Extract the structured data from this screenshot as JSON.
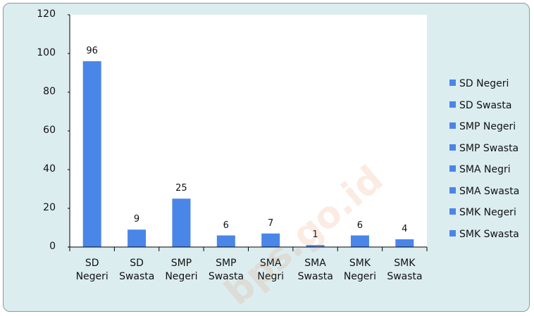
{
  "chart_data": {
    "type": "bar",
    "categories": [
      "SD Negeri",
      "SD Swasta",
      "SMP Negeri",
      "SMP Swasta",
      "SMA Negri",
      "SMA Swasta",
      "SMK Negeri",
      "SMK Swasta"
    ],
    "values": [
      96,
      9,
      25,
      6,
      7,
      1,
      6,
      4
    ],
    "color": "#4a86e8",
    "ylim": [
      0,
      120
    ],
    "yticks": [
      0,
      20,
      40,
      60,
      80,
      100,
      120
    ],
    "legend": "right",
    "watermark": "bps.go.id"
  }
}
